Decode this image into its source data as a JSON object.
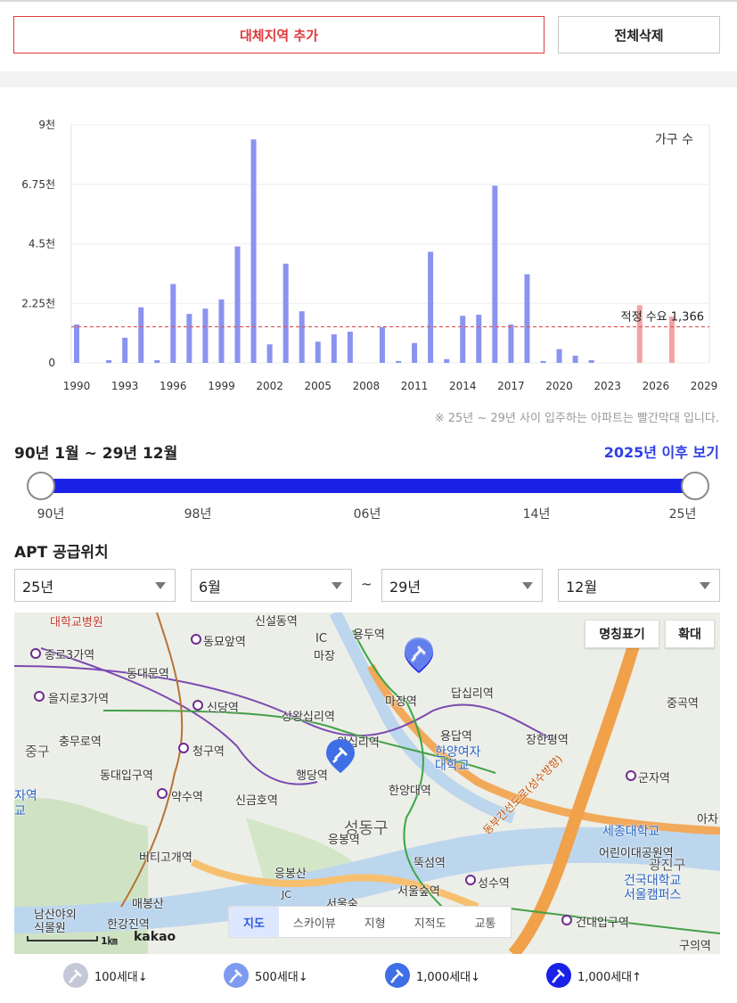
{
  "buttons": {
    "add_region": "대체지역 추가",
    "delete_all": "전체삭제"
  },
  "chart_data": {
    "type": "bar",
    "legend_label": "가구 수",
    "y_ticks": [
      "0",
      "2.25천",
      "4.5천",
      "6.75천",
      "9천"
    ],
    "ylim": [
      0,
      9000
    ],
    "x_tick_labels": [
      "1990",
      "1993",
      "1996",
      "1999",
      "2002",
      "2005",
      "2008",
      "2011",
      "2014",
      "2017",
      "2020",
      "2023",
      "2026",
      "2029"
    ],
    "x_range": [
      1990,
      2029
    ],
    "years": [
      1990,
      1991,
      1992,
      1993,
      1994,
      1995,
      1996,
      1997,
      1998,
      1999,
      2000,
      2001,
      2002,
      2003,
      2004,
      2005,
      2006,
      2007,
      2008,
      2009,
      2010,
      2011,
      2012,
      2013,
      2014,
      2015,
      2016,
      2017,
      2018,
      2019,
      2020,
      2021,
      2022,
      2023,
      2024,
      2025,
      2026,
      2027,
      2028,
      2029
    ],
    "values": [
      1450,
      0,
      100,
      950,
      2100,
      100,
      2980,
      1850,
      2050,
      2400,
      4400,
      8450,
      700,
      3750,
      1950,
      800,
      1080,
      1180,
      0,
      1350,
      70,
      750,
      4200,
      140,
      1780,
      1820,
      6700,
      1450,
      3350,
      70,
      520,
      270,
      100,
      0,
      0,
      2180,
      0,
      1750,
      0,
      0
    ],
    "future_bar_color": "#f4a3a3",
    "past_bar_color": "#8b93f0",
    "reference_line": {
      "value": 1366,
      "label": "적정 수요 1,366",
      "color": "#e05a5a"
    }
  },
  "note": "※ 25년 ~ 29년 사이 입주하는 아파트는 빨간막대 입니다.",
  "range": {
    "title": "90년 1월 ~ 29년 12월",
    "after_link": "2025년 이후 보기",
    "ticks": [
      "90년",
      "98년",
      "06년",
      "14년",
      "25년"
    ]
  },
  "apt": {
    "title": "APT 공급위치",
    "from_year": "25년",
    "from_month": "6월",
    "tilde": "~",
    "to_year": "29년",
    "to_month": "12월"
  },
  "map": {
    "buttons": {
      "names": "명칭표기",
      "zoom": "확대"
    },
    "tabs": [
      "지도",
      "스카이뷰",
      "지형",
      "지적도",
      "교통"
    ],
    "scale": "1㎞",
    "logo": "kakao",
    "labels": {
      "hospital": "대학교병원",
      "sinseoldong": "신설동역",
      "yongdu": "용두역",
      "jongno3": "종로3가역",
      "dongmyo": "동묘앞역",
      "ic": "IC",
      "majang": "마장",
      "dongdaemun": "동대문역",
      "dapsimni": "답십리역",
      "euljiro3": "을지로3가역",
      "sindang": "신당역",
      "majangyeok": "마장역",
      "jungok": "중곡역",
      "sangwangsimni": "상왕십리역",
      "chungmuro": "충무로역",
      "junggu": "중구",
      "cheonggu": "청구역",
      "wangsimni": "왕십리역",
      "yongdap": "용답역",
      "janghanpyeong": "장한평역",
      "hanyang_univ": "한양여자\n대학교",
      "dongdaeipgu": "동대입구역",
      "haengdang": "행당역",
      "gunja": "군자역",
      "yaksu": "약수역",
      "singeumho": "신금호역",
      "hanyangdae": "한양대역",
      "achasan": "아차",
      "seongdonggu": "성동구",
      "sejong": "세종대학교",
      "eungbong": "응봉역",
      "beotigogae": "버티고개역",
      "childrens_park": "어린이대공원역",
      "gwangjingu": "광진구",
      "eungbongsan": "응봉산",
      "ttukseom": "뚝섬역",
      "maebongsan": "매봉산",
      "seongsu": "성수역",
      "konkuk": "건국대학교\n서울캠퍼스",
      "seoulforest": "서울숲역",
      "namsan": "남산야외\n식물원",
      "hangangjin": "한강진역",
      "jc": "JC",
      "seoulsup": "서울숲",
      "konkukipgu": "건대입구역",
      "guui": "구의역",
      "dongbu": "동부간선도로(성수방향)",
      "left_edge1": "자역",
      "left_edge2": "교"
    }
  },
  "legend": [
    "100세대↓",
    "500세대↓",
    "1,000세대↓",
    "1,000세대↑"
  ]
}
